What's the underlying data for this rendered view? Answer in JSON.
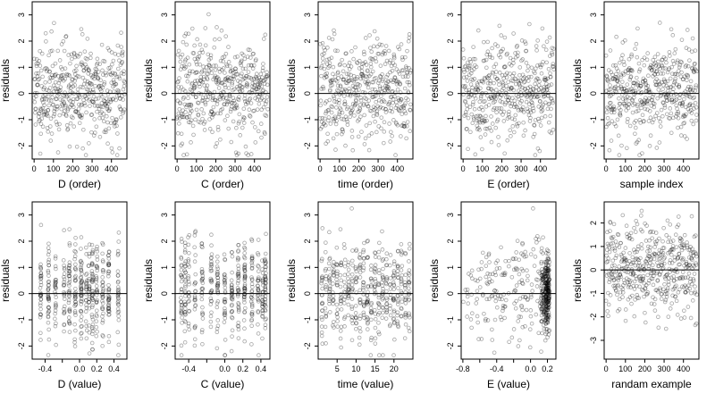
{
  "figure": {
    "rows": 2,
    "cols": 5,
    "marker": "open-circle",
    "point_color": "#000000",
    "point_opacity": 0.35,
    "reference_line": 0
  },
  "chart_data": [
    {
      "type": "scatter",
      "xlabel": "D (order)",
      "ylabel": "residuals",
      "xlim": [
        -10,
        480
      ],
      "ylim": [
        -2.5,
        3.5
      ],
      "xticks": [
        0,
        100,
        200,
        300,
        400
      ],
      "yticks": [
        -2,
        -1,
        0,
        1,
        2,
        3
      ],
      "hline": 0,
      "pattern": "uniform",
      "n_points": 470,
      "seed": 11
    },
    {
      "type": "scatter",
      "xlabel": "C (order)",
      "ylabel": "residuals",
      "xlim": [
        -10,
        480
      ],
      "ylim": [
        -2.5,
        3.5
      ],
      "xticks": [
        0,
        100,
        200,
        300,
        400
      ],
      "yticks": [
        -2,
        -1,
        0,
        1,
        2,
        3
      ],
      "hline": 0,
      "pattern": "uniform",
      "n_points": 470,
      "seed": 23
    },
    {
      "type": "scatter",
      "xlabel": "time (order)",
      "ylabel": "residuals",
      "xlim": [
        -10,
        480
      ],
      "ylim": [
        -2.5,
        3.5
      ],
      "xticks": [
        0,
        100,
        200,
        300,
        400
      ],
      "yticks": [
        -2,
        -1,
        0,
        1,
        2,
        3
      ],
      "hline": 0,
      "pattern": "uniform",
      "n_points": 470,
      "seed": 37
    },
    {
      "type": "scatter",
      "xlabel": "E (order)",
      "ylabel": "residuals",
      "xlim": [
        -10,
        480
      ],
      "ylim": [
        -2.5,
        3.5
      ],
      "xticks": [
        0,
        100,
        200,
        300,
        400
      ],
      "yticks": [
        -2,
        -1,
        0,
        1,
        2,
        3
      ],
      "hline": 0,
      "pattern": "uniform",
      "n_points": 470,
      "seed": 41
    },
    {
      "type": "scatter",
      "xlabel": "sample index",
      "ylabel": "residuals",
      "xlim": [
        -10,
        480
      ],
      "ylim": [
        -2.5,
        3.5
      ],
      "xticks": [
        0,
        100,
        200,
        300,
        400
      ],
      "yticks": [
        -2,
        -1,
        0,
        1,
        2,
        3
      ],
      "hline": 0,
      "pattern": "uniform",
      "n_points": 470,
      "seed": 53
    },
    {
      "type": "scatter",
      "xlabel": "D (value)",
      "ylabel": "residuals",
      "xlim": [
        -0.55,
        0.55
      ],
      "ylim": [
        -2.5,
        3.5
      ],
      "xticks": [
        -0.4,
        -0.2,
        0.0,
        0.2,
        0.4
      ],
      "xtick_labels": [
        "-0.4",
        "",
        "0.0",
        "0.2",
        "0.4"
      ],
      "yticks": [
        -2,
        -1,
        0,
        1,
        2,
        3
      ],
      "hline": 0,
      "pattern": "clustered",
      "clusters": [
        -0.45,
        -0.36,
        -0.28,
        -0.18,
        -0.12,
        -0.05,
        0.02,
        0.08,
        0.11,
        0.15,
        0.2,
        0.27,
        0.34,
        0.45
      ],
      "n_points": 470,
      "seed": 61
    },
    {
      "type": "scatter",
      "xlabel": "C (value)",
      "ylabel": "residuals",
      "xlim": [
        -0.55,
        0.5
      ],
      "ylim": [
        -2.5,
        3.5
      ],
      "xticks": [
        -0.4,
        -0.2,
        0.0,
        0.2,
        0.4
      ],
      "xtick_labels": [
        "-0.4",
        "",
        "0.0",
        "0.2",
        "0.4"
      ],
      "yticks": [
        -2,
        -1,
        0,
        1,
        2,
        3
      ],
      "hline": 0,
      "pattern": "clustered",
      "clusters": [
        -0.48,
        -0.44,
        -0.4,
        -0.33,
        -0.25,
        -0.15,
        -0.08,
        0.0,
        0.08,
        0.15,
        0.22,
        0.3,
        0.37,
        0.42,
        0.45
      ],
      "n_points": 470,
      "seed": 71
    },
    {
      "type": "scatter",
      "xlabel": "time (value)",
      "ylabel": "residuals",
      "xlim": [
        0,
        25
      ],
      "ylim": [
        -2.5,
        3.5
      ],
      "xticks": [
        5,
        10,
        15,
        20
      ],
      "yticks": [
        -2,
        -1,
        0,
        1,
        2,
        3
      ],
      "hline": 0,
      "pattern": "clustered",
      "clusters": [
        1,
        2,
        3,
        4,
        5,
        6,
        7,
        8,
        9,
        10,
        11,
        12,
        13,
        14,
        15,
        16,
        17,
        18,
        19,
        20,
        21,
        22,
        23,
        24
      ],
      "n_points": 470,
      "seed": 83
    },
    {
      "type": "scatter",
      "xlabel": "E (value)",
      "ylabel": "residuals",
      "xlim": [
        -0.82,
        0.3
      ],
      "ylim": [
        -2.5,
        3.5
      ],
      "xticks": [
        -0.8,
        -0.6,
        -0.4,
        -0.2,
        0.0,
        0.2
      ],
      "xtick_labels": [
        "-0.8",
        "",
        "-0.4",
        "",
        "0.0",
        "0.2"
      ],
      "yticks": [
        -2,
        -1,
        0,
        1,
        2,
        3
      ],
      "hline": 0,
      "pattern": "skewed",
      "n_points": 470,
      "seed": 97
    },
    {
      "type": "scatter",
      "xlabel": "randam example",
      "ylabel": "residuals",
      "xlim": [
        -10,
        480
      ],
      "ylim": [
        -3.8,
        2.9
      ],
      "xticks": [
        0,
        100,
        200,
        300,
        400
      ],
      "yticks": [
        -3,
        -2,
        -1,
        0,
        1,
        2
      ],
      "hline": 0,
      "pattern": "uniform",
      "n_points": 470,
      "seed": 101
    }
  ]
}
